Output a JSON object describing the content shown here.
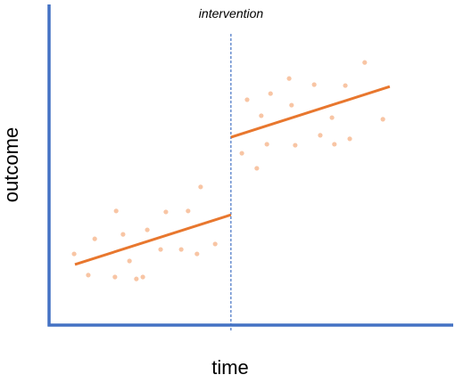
{
  "chart_data": {
    "type": "scatter",
    "annotation": "intervention",
    "xlabel": "time",
    "ylabel": "outcome",
    "xlim": [
      0,
      100
    ],
    "ylim": [
      0,
      100
    ],
    "axis_color": "#4472c4",
    "intervention_x": 45.0,
    "series": [
      {
        "color": "#f8c5a4",
        "x": [
          6.2,
          9.7,
          11.3,
          16.6,
          16.3,
          18.3,
          19.9,
          21.6,
          23.2,
          24.3,
          27.6,
          28.9,
          32.7,
          34.4,
          36.6,
          37.5,
          41.1,
          47.7,
          49.0,
          51.4,
          52.5,
          53.9,
          54.8,
          59.4,
          60.0,
          60.9,
          65.6,
          67.1,
          70.0,
          70.6,
          73.3,
          74.4,
          78.1,
          82.6
        ],
        "values": [
          22.2,
          15.6,
          26.9,
          35.6,
          15.0,
          28.3,
          20.0,
          14.4,
          15.0,
          29.7,
          23.6,
          35.3,
          23.6,
          35.6,
          22.2,
          43.1,
          25.3,
          53.6,
          70.3,
          48.9,
          65.3,
          56.4,
          72.2,
          76.9,
          68.6,
          56.1,
          75.0,
          59.2,
          64.7,
          56.4,
          74.7,
          58.1,
          81.9,
          64.2
        ]
      }
    ],
    "trend_lines": [
      {
        "color": "#e8772e",
        "x": [
          6.4,
          45.0
        ],
        "values": [
          18.9,
          34.4
        ]
      },
      {
        "color": "#e8772e",
        "x": [
          45.0,
          84.3
        ],
        "values": [
          58.6,
          74.4
        ]
      }
    ]
  }
}
